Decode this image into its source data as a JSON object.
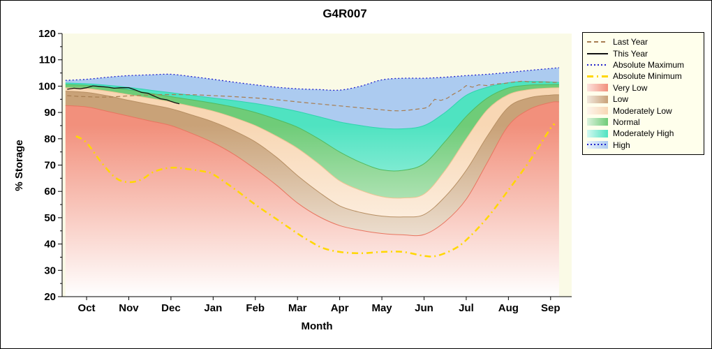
{
  "chart_data": {
    "type": "area",
    "title": "G4R007",
    "xlabel": "Month",
    "ylabel": "% Storage",
    "ylim": [
      20,
      120
    ],
    "yticks": [
      20,
      30,
      40,
      50,
      60,
      70,
      80,
      90,
      100,
      110,
      120
    ],
    "months": [
      "Oct",
      "Nov",
      "Dec",
      "Jan",
      "Feb",
      "Mar",
      "Apr",
      "May",
      "Jun",
      "Jul",
      "Aug",
      "Sep"
    ],
    "grid": false,
    "legend_position": "outside-top-right",
    "colors": {
      "plot_bg": "#FAFAE6",
      "legend_bg": "#FFFFEC",
      "figure_bg": "#FFFFFF",
      "axis": "#000000"
    },
    "band_x": [
      -0.5,
      0,
      0.5,
      1,
      1.5,
      2,
      2.5,
      3,
      3.5,
      4,
      4.5,
      5,
      5.5,
      6,
      6.5,
      7,
      7.5,
      8,
      8.5,
      9,
      9.5,
      10,
      10.5,
      11,
      11.2
    ],
    "bands": [
      {
        "key": "very_low",
        "label": "Very Low",
        "color": "#F2907C",
        "edge": "#E87560",
        "values": [
          92.6,
          92.1,
          90.4,
          88.6,
          86.8,
          85.0,
          82.0,
          78.5,
          74.0,
          68.5,
          62.4,
          55.6,
          50.5,
          47.0,
          45.2,
          44.0,
          43.5,
          43.6,
          48.5,
          57.0,
          71.0,
          85.0,
          91.2,
          93.8,
          94.0
        ]
      },
      {
        "key": "low",
        "label": "Low",
        "color": "#C9A278",
        "edge": "#B78F63",
        "values": [
          98.1,
          97.6,
          96.3,
          94.6,
          93.0,
          91.4,
          89.0,
          86.4,
          83.0,
          78.8,
          73.0,
          66.0,
          59.8,
          54.5,
          52.0,
          50.6,
          50.3,
          51.2,
          58.0,
          68.0,
          81.0,
          92.0,
          95.6,
          96.6,
          96.7
        ]
      },
      {
        "key": "moderately_low",
        "label": "Moderately Low",
        "color": "#F8D7B4",
        "edge": "#EEC493",
        "values": [
          99.4,
          99.1,
          98.1,
          96.8,
          95.4,
          94.0,
          92.3,
          90.5,
          88.0,
          85.0,
          81.0,
          76.4,
          70.5,
          64.0,
          60.4,
          58.0,
          57.5,
          59.0,
          68.0,
          80.0,
          91.0,
          96.8,
          98.7,
          99.3,
          99.4
        ]
      },
      {
        "key": "normal",
        "label": "Normal",
        "color": "#6FCC78",
        "edge": "#52BA5E",
        "values": [
          100.6,
          100.3,
          99.6,
          98.6,
          97.3,
          96.0,
          94.8,
          93.5,
          92.0,
          90.0,
          87.4,
          84.4,
          80.0,
          75.0,
          71.0,
          68.2,
          68.0,
          70.5,
          79.0,
          88.5,
          95.5,
          99.3,
          100.4,
          100.6,
          100.6
        ]
      },
      {
        "key": "moderately_high",
        "label": "Moderately High",
        "color": "#4FE3C1",
        "edge": "#2FD4AE",
        "values": [
          101.2,
          100.9,
          100.3,
          99.5,
          98.5,
          97.5,
          96.5,
          95.5,
          94.5,
          93.4,
          92.0,
          90.4,
          88.4,
          86.4,
          85.0,
          84.0,
          83.8,
          85.0,
          90.0,
          96.5,
          99.6,
          101.3,
          101.8,
          101.6,
          101.4
        ]
      },
      {
        "key": "high",
        "label": "High",
        "color": "#ACCBF0",
        "edge": null,
        "values": [
          102.2,
          102.6,
          103.4,
          104.0,
          104.3,
          104.5,
          103.6,
          102.6,
          101.5,
          100.5,
          99.6,
          99.0,
          98.7,
          98.5,
          100.0,
          102.4,
          103.0,
          103.0,
          103.4,
          104.0,
          104.5,
          105.2,
          106.0,
          106.7,
          107.0
        ]
      }
    ],
    "lines": [
      {
        "key": "absolute_minimum",
        "label": "Absolute Minimum",
        "color": "#FFD700",
        "dash": "9 5 2 5",
        "width": 2.5,
        "smooth": true,
        "x": [
          -0.25,
          0,
          0.35,
          0.7,
          1,
          1.3,
          1.6,
          2,
          2.4,
          2.8,
          3,
          3.5,
          4,
          4.5,
          5,
          5.3,
          5.6,
          6,
          6.5,
          7,
          7.5,
          8,
          8.3,
          8.7,
          9,
          9.5,
          10,
          10.5,
          11,
          11.1
        ],
        "y": [
          81.0,
          78.5,
          71.0,
          65.0,
          63.5,
          64.5,
          67.5,
          69.0,
          68.5,
          67.5,
          66.5,
          61.0,
          55.0,
          49.5,
          44.0,
          41.0,
          38.5,
          37.0,
          36.5,
          37.0,
          37.0,
          35.5,
          35.5,
          38.0,
          41.5,
          50.0,
          60.5,
          71.5,
          84.0,
          85.5
        ]
      },
      {
        "key": "absolute_maximum",
        "label": "Absolute Maximum",
        "color": "#2121CC",
        "dash": "2 3",
        "width": 1.3,
        "smooth": true,
        "x": [
          -0.5,
          0,
          0.5,
          1,
          1.5,
          2,
          2.5,
          3,
          3.5,
          4,
          4.5,
          5,
          5.5,
          6,
          6.5,
          7,
          7.5,
          8,
          8.5,
          9,
          9.5,
          10,
          10.5,
          11,
          11.2
        ],
        "y": [
          102.2,
          102.6,
          103.4,
          104.0,
          104.3,
          104.5,
          103.6,
          102.6,
          101.5,
          100.5,
          99.6,
          99.0,
          98.7,
          98.5,
          100.0,
          102.4,
          103.0,
          103.0,
          103.4,
          104.0,
          104.5,
          105.2,
          106.0,
          106.7,
          107.0
        ]
      },
      {
        "key": "last_year",
        "label": "Last Year",
        "color": "#A87D50",
        "dash": "6 4",
        "width": 1.2,
        "smooth": false,
        "x": [
          -0.46,
          -0.2,
          0,
          0.3,
          0.6,
          1,
          1.4,
          1.8,
          2.2,
          2.6,
          3,
          3.4,
          3.8,
          4.2,
          4.6,
          5,
          5.4,
          5.8,
          6.2,
          6.6,
          7,
          7.2,
          7.4,
          7.6,
          7.8,
          8,
          8.1,
          8.25,
          8.4,
          8.55,
          8.7,
          8.85,
          9,
          9.15,
          9.3,
          9.5,
          9.7,
          9.9,
          10.1,
          10.35,
          10.6,
          10.85,
          11.1,
          11.2
        ],
        "y": [
          96.4,
          96.1,
          96.0,
          95.8,
          95.9,
          96.3,
          96.6,
          96.8,
          96.8,
          96.7,
          96.4,
          96.1,
          95.7,
          95.3,
          94.7,
          94.0,
          93.4,
          92.8,
          92.2,
          91.6,
          91.0,
          90.7,
          90.6,
          90.8,
          91.2,
          91.6,
          92.0,
          95.0,
          94.6,
          95.4,
          97.0,
          98.3,
          100.2,
          99.6,
          100.5,
          100.2,
          100.8,
          101.0,
          101.5,
          101.9,
          101.4,
          101.6,
          101.4,
          101.5
        ]
      },
      {
        "key": "this_year",
        "label": "This Year",
        "color": "#111111",
        "dash": "",
        "width": 1.3,
        "smooth": false,
        "x": [
          -0.46,
          -0.3,
          -0.15,
          0,
          0.15,
          0.3,
          0.5,
          0.65,
          0.8,
          1,
          1.15,
          1.3,
          1.45,
          1.6,
          1.75,
          1.9,
          2,
          2.1,
          2.2
        ],
        "y": [
          98.8,
          99.2,
          99.0,
          99.4,
          100.1,
          99.9,
          99.6,
          99.2,
          99.4,
          99.4,
          98.6,
          97.6,
          97.3,
          96.2,
          95.2,
          94.8,
          94.2,
          93.7,
          93.3
        ]
      }
    ],
    "legend": [
      {
        "label": "Last Year",
        "type": "line",
        "ref": "last_year"
      },
      {
        "label": "This Year",
        "type": "line",
        "ref": "this_year"
      },
      {
        "label": "Absolute Maximum",
        "type": "line",
        "ref": "absolute_maximum"
      },
      {
        "label": "Absolute Minimum",
        "type": "line",
        "ref": "absolute_minimum"
      },
      {
        "label": "Very Low",
        "type": "fill",
        "ref": "very_low"
      },
      {
        "label": "Low",
        "type": "fill",
        "ref": "low"
      },
      {
        "label": "Moderately Low",
        "type": "fill",
        "ref": "moderately_low"
      },
      {
        "label": "Normal",
        "type": "fill",
        "ref": "normal"
      },
      {
        "label": "Moderately High",
        "type": "fill",
        "ref": "moderately_high"
      },
      {
        "label": "High",
        "type": "fill",
        "ref": "high",
        "overlay_line": "absolute_maximum"
      }
    ]
  }
}
